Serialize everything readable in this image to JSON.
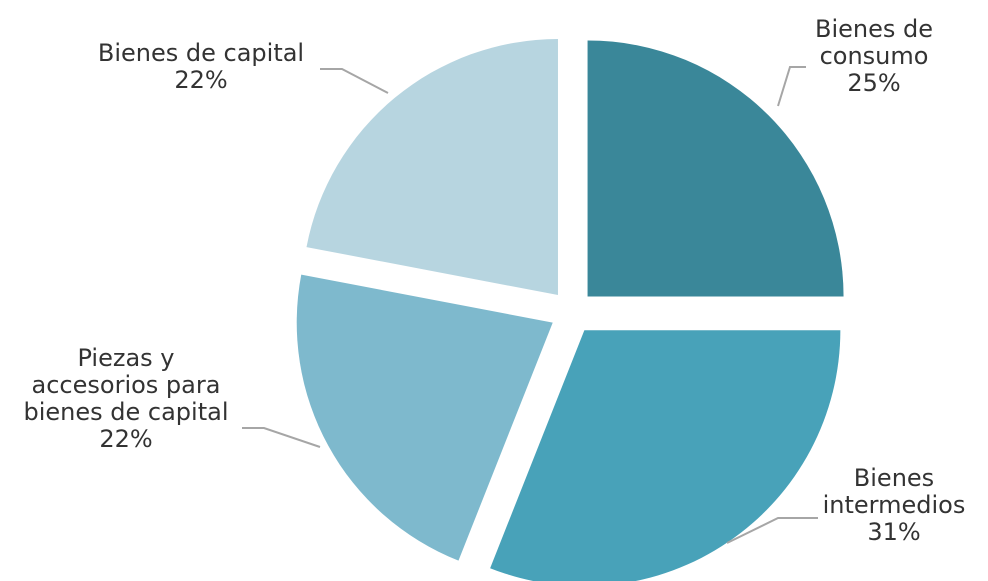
{
  "chart_data": {
    "type": "pie",
    "title": "",
    "slices": [
      {
        "label_lines": [
          "Bienes de",
          "consumo"
        ],
        "value": 25,
        "value_label": "25%",
        "color": "#3a8799"
      },
      {
        "label_lines": [
          "Bienes",
          "intermedios"
        ],
        "value": 31,
        "value_label": "31%",
        "color": "#48a2b9"
      },
      {
        "label_lines": [
          "Piezas y",
          "accesorios para",
          "bienes de capital"
        ],
        "value": 22,
        "value_label": "22%",
        "color": "#7eb9cd"
      },
      {
        "label_lines": [
          "Bienes de capital"
        ],
        "value": 22,
        "value_label": "22%",
        "color": "#b7d5e0"
      }
    ],
    "start_angle_deg": 0,
    "direction": "clockwise",
    "exploded": true,
    "legend": "none"
  }
}
